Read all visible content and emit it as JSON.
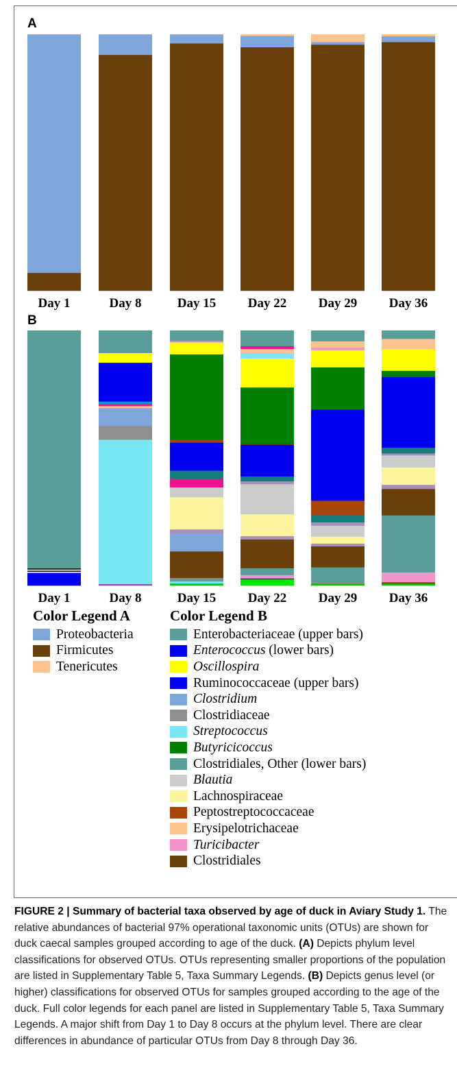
{
  "panels": {
    "a_label": "A",
    "b_label": "B"
  },
  "chart_data": [
    {
      "type": "bar",
      "stacked": true,
      "panel": "A",
      "categories": [
        "Day 1",
        "Day 8",
        "Day 15",
        "Day 22",
        "Day 29",
        "Day 36"
      ],
      "ylim": [
        0,
        100
      ],
      "series": [
        {
          "name": "Firmicutes",
          "color": "#693F0A",
          "values": [
            7,
            92,
            96.5,
            95,
            96,
            97
          ]
        },
        {
          "name": "Proteobacteria",
          "color": "#7FA6DB",
          "values": [
            93,
            8,
            3.5,
            4.4,
            1,
            2.3
          ]
        },
        {
          "name": "Tenericutes",
          "color": "#FDC38F",
          "values": [
            0,
            0,
            0,
            0.6,
            3,
            0.7
          ]
        }
      ]
    },
    {
      "type": "bar",
      "stacked": true,
      "panel": "B",
      "categories": [
        "Day 1",
        "Day 8",
        "Day 15",
        "Day 22",
        "Day 29",
        "Day 36"
      ],
      "ylim": [
        0,
        100
      ],
      "stacks": [
        [
          {
            "color": "#0000F0",
            "value": 5.0
          },
          {
            "color": "#FFFFFF",
            "value": 0.4
          },
          {
            "color": "#1A1A1A",
            "value": 0.5
          },
          {
            "color": "#FFFFFF",
            "value": 0.4
          },
          {
            "color": "#1A1A1A",
            "value": 0.5
          },
          {
            "color": "#5A9E99",
            "value": 93.2
          }
        ],
        [
          {
            "color": "#8B4FA0",
            "value": 0.6
          },
          {
            "color": "#7AE8F4",
            "value": 56.6
          },
          {
            "color": "#8F8F8F",
            "value": 5.4
          },
          {
            "color": "#7FA6DB",
            "value": 7.0
          },
          {
            "color": "#FDC38F",
            "value": 0.8
          },
          {
            "color": "#F2118F",
            "value": 0.8
          },
          {
            "color": "#0096C8",
            "value": 1.0
          },
          {
            "color": "#0000F0",
            "value": 15.2
          },
          {
            "color": "#FFFF00",
            "value": 3.8
          },
          {
            "color": "#5A9E99",
            "value": 8.8
          }
        ],
        [
          {
            "color": "#00C800",
            "value": 0.8
          },
          {
            "color": "#7AE8F4",
            "value": 0.8
          },
          {
            "color": "#5A9E99",
            "value": 0.8
          },
          {
            "color": "#8F8F8F",
            "value": 0.5
          },
          {
            "color": "#693F0A",
            "value": 10.2
          },
          {
            "color": "#7FA6DB",
            "value": 6.8
          },
          {
            "color": "#A88EBD",
            "value": 1.6
          },
          {
            "color": "#FAF59A",
            "value": 12.3
          },
          {
            "color": "#CCCCCC",
            "value": 3.8
          },
          {
            "color": "#F2118F",
            "value": 3.2
          },
          {
            "color": "#167E7A",
            "value": 3.2
          },
          {
            "color": "#0000F0",
            "value": 10.7
          },
          {
            "color": "#A94508",
            "value": 1.0
          },
          {
            "color": "#008000",
            "value": 32.8
          },
          {
            "color": "#FFFF00",
            "value": 4.3
          },
          {
            "color": "#FDC38F",
            "value": 0.5
          },
          {
            "color": "#A88EBD",
            "value": 0.5
          },
          {
            "color": "#5A9E99",
            "value": 3.8
          }
        ],
        [
          {
            "color": "#00E800",
            "value": 2.5
          },
          {
            "color": "#1A1A1A",
            "value": 0.3
          },
          {
            "color": "#F595C9",
            "value": 1.3
          },
          {
            "color": "#5A9E99",
            "value": 2.7
          },
          {
            "color": "#693F0A",
            "value": 11.3
          },
          {
            "color": "#A88EBD",
            "value": 1.3
          },
          {
            "color": "#FAF59A",
            "value": 8.6
          },
          {
            "color": "#CCCCCC",
            "value": 11.8
          },
          {
            "color": "#A88EBD",
            "value": 1.1
          },
          {
            "color": "#167E7A",
            "value": 1.9
          },
          {
            "color": "#0000F0",
            "value": 12.4
          },
          {
            "color": "#693F0A",
            "value": 0.5
          },
          {
            "color": "#008000",
            "value": 22.0
          },
          {
            "color": "#FFFF00",
            "value": 11.3
          },
          {
            "color": "#7AE8F4",
            "value": 2.2
          },
          {
            "color": "#FDC38F",
            "value": 1.6
          },
          {
            "color": "#F2118F",
            "value": 1.1
          },
          {
            "color": "#5A9E99",
            "value": 6.1
          }
        ],
        [
          {
            "color": "#00C800",
            "value": 0.8
          },
          {
            "color": "#8F8F8F",
            "value": 0.5
          },
          {
            "color": "#5A9E99",
            "value": 5.9
          },
          {
            "color": "#693F0A",
            "value": 8.2
          },
          {
            "color": "#A88EBD",
            "value": 1.1
          },
          {
            "color": "#FAF59A",
            "value": 2.7
          },
          {
            "color": "#CCCCCC",
            "value": 4.3
          },
          {
            "color": "#A88EBD",
            "value": 1.3
          },
          {
            "color": "#167E7A",
            "value": 2.9
          },
          {
            "color": "#A94508",
            "value": 5.6
          },
          {
            "color": "#0000F0",
            "value": 35.7
          },
          {
            "color": "#008000",
            "value": 16.6
          },
          {
            "color": "#FFFF00",
            "value": 6.7
          },
          {
            "color": "#F595C9",
            "value": 1.1
          },
          {
            "color": "#FDC38F",
            "value": 2.4
          },
          {
            "color": "#5A9E99",
            "value": 4.2
          }
        ],
        [
          {
            "color": "#00C800",
            "value": 0.8
          },
          {
            "color": "#693F0A",
            "value": 0.5
          },
          {
            "color": "#F595C9",
            "value": 3.8
          },
          {
            "color": "#5A9E99",
            "value": 22.0
          },
          {
            "color": "#693F0A",
            "value": 10.2
          },
          {
            "color": "#A88EBD",
            "value": 1.6
          },
          {
            "color": "#FAF59A",
            "value": 6.7
          },
          {
            "color": "#CCCCCC",
            "value": 4.6
          },
          {
            "color": "#A88EBD",
            "value": 0.8
          },
          {
            "color": "#167E7A",
            "value": 2.2
          },
          {
            "color": "#0000F0",
            "value": 27.3
          },
          {
            "color": "#008000",
            "value": 2.4
          },
          {
            "color": "#FFFF00",
            "value": 8.3
          },
          {
            "color": "#FDC38F",
            "value": 4.0
          },
          {
            "color": "#5A9E99",
            "value": 3.2
          }
        ]
      ]
    }
  ],
  "legend_a": {
    "title": "Color Legend A",
    "items": [
      {
        "label": "Proteobacteria",
        "color": "#7FA6DB"
      },
      {
        "label": "Firmicutes",
        "color": "#693F0A"
      },
      {
        "label": "Tenericutes",
        "color": "#FDC38F"
      }
    ]
  },
  "legend_b": {
    "title": "Color Legend B",
    "items": [
      {
        "label": "Enterobacteriaceae",
        "suffix": " (upper bars)",
        "italic": false,
        "color": "#5A9E99"
      },
      {
        "label": "Enterococcus",
        "suffix": " (lower bars)",
        "italic": true,
        "color": "#0000F0"
      },
      {
        "label": "Oscillospira",
        "suffix": "",
        "italic": true,
        "color": "#FFFF00"
      },
      {
        "label": "Ruminococcaceae",
        "suffix": " (upper bars)",
        "italic": false,
        "color": "#0000F0"
      },
      {
        "label": "Clostridium",
        "suffix": "",
        "italic": true,
        "color": "#7FA6DB"
      },
      {
        "label": "Clostridiaceae",
        "suffix": "",
        "italic": false,
        "color": "#8F8F8F"
      },
      {
        "label": "Streptococcus",
        "suffix": "",
        "italic": true,
        "color": "#7AE8F4"
      },
      {
        "label": "Butyricicoccus",
        "suffix": "",
        "italic": true,
        "color": "#008000"
      },
      {
        "label": "Clostridiales, Other",
        "suffix": " (lower bars)",
        "italic": false,
        "color": "#5A9E99"
      },
      {
        "label": "Blautia",
        "suffix": "",
        "italic": true,
        "color": "#CCCCCC"
      },
      {
        "label": "Lachnospiraceae",
        "suffix": "",
        "italic": false,
        "color": "#FAF59A"
      },
      {
        "label": "Peptostreptococcaceae",
        "suffix": "",
        "italic": false,
        "color": "#A94508"
      },
      {
        "label": "Erysipelotrichaceae",
        "suffix": "",
        "italic": false,
        "color": "#FDC38F"
      },
      {
        "label": "Turicibacter",
        "suffix": "",
        "italic": true,
        "color": "#F595C9"
      },
      {
        "label": "Clostridiales",
        "suffix": "",
        "italic": false,
        "color": "#693F0A"
      }
    ]
  },
  "caption": {
    "lead": "FIGURE 2 | Summary of bacterial taxa observed by age of duck in Aviary Study 1.",
    "text1": " The relative abundances of bacterial 97% operational taxonomic units (OTUs) are shown for duck caecal samples grouped according to age of the duck. ",
    "a_ref": "(A)",
    "text2": " Depicts phylum level classifications for observed OTUs. OTUs representing smaller proportions of the population are listed in Supplementary Table 5, Taxa Summary Legends. ",
    "b_ref": "(B)",
    "text3": " Depicts genus level (or higher) classifications for observed OTUs for samples grouped according to the age of the duck. Full color legends for each panel are listed in Supplementary Table 5, Taxa Summary Legends. A major shift from Day 1 to Day 8 occurs at the phylum level. There are clear differences in abundance of particular OTUs from Day 8 through Day 36."
  }
}
